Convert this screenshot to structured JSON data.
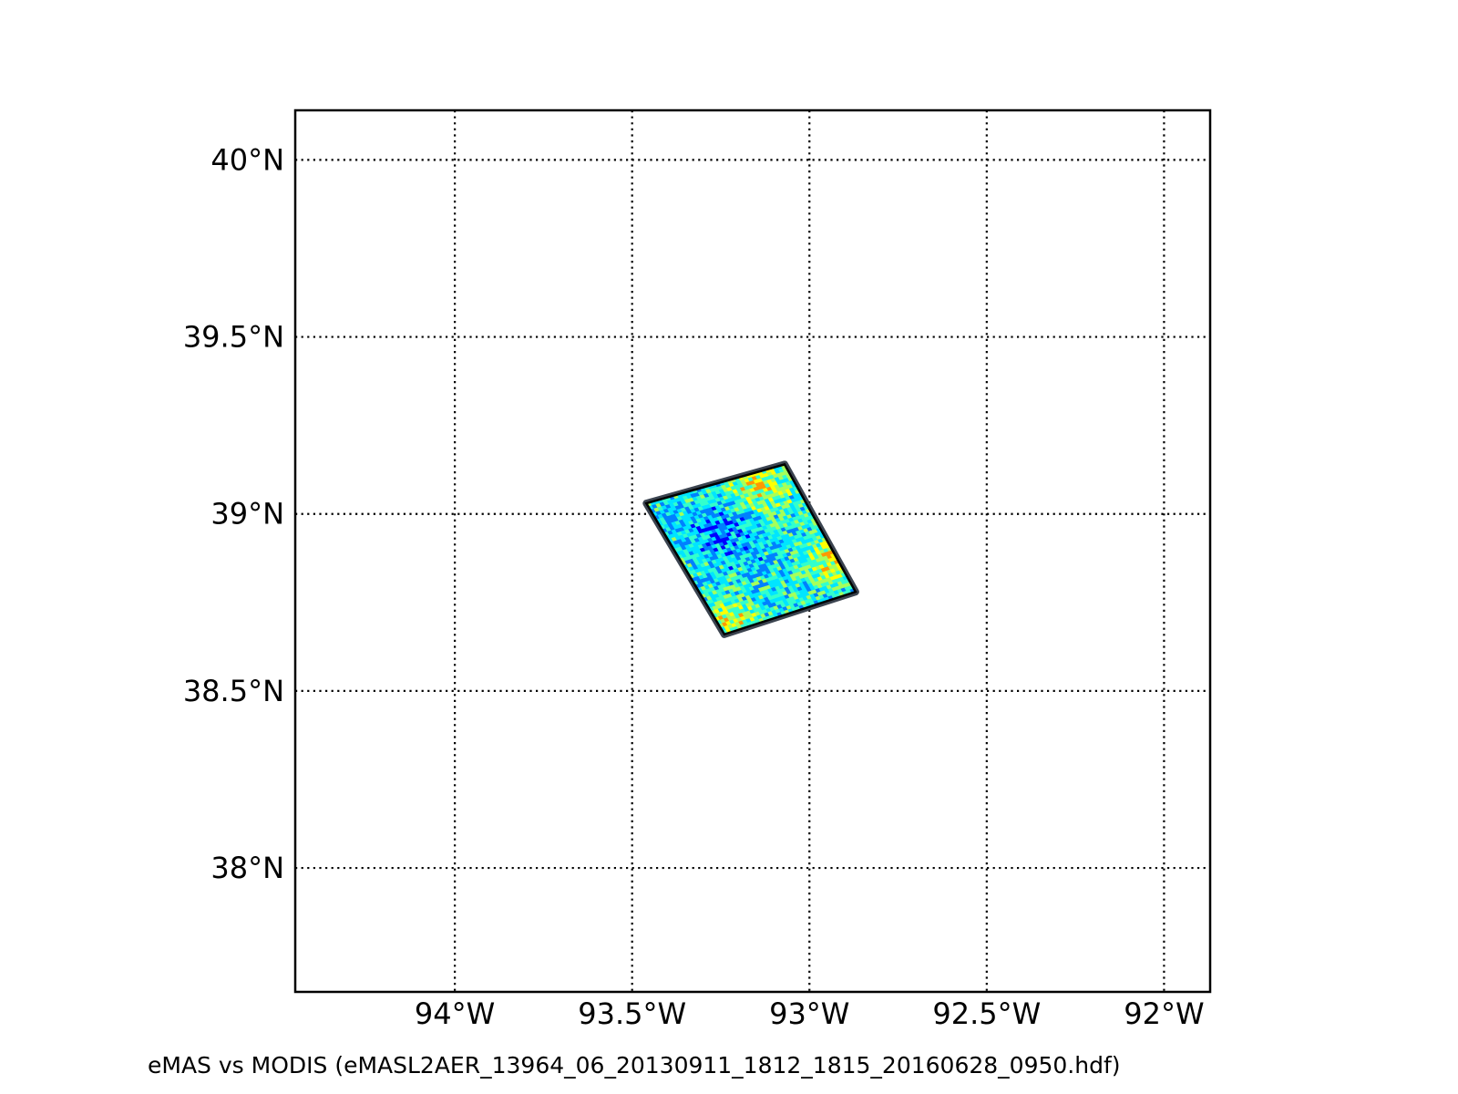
{
  "map": {
    "caption": "eMAS vs MODIS (eMASL2AER_13964_06_20130911_1812_1815_20160628_0950.hdf)",
    "lon_range": [
      -94.45,
      -91.87
    ],
    "lat_range": [
      37.65,
      40.14
    ],
    "lon_ticks": [
      {
        "value": -94.0,
        "label": "94°W"
      },
      {
        "value": -93.5,
        "label": "93.5°W"
      },
      {
        "value": -93.0,
        "label": "93°W"
      },
      {
        "value": -92.5,
        "label": "92.5°W"
      },
      {
        "value": -92.0,
        "label": "92°W"
      }
    ],
    "lat_ticks": [
      {
        "value": 40.0,
        "label": "40°N"
      },
      {
        "value": 39.5,
        "label": "39.5°N"
      },
      {
        "value": 39.0,
        "label": "39°N"
      },
      {
        "value": 38.5,
        "label": "38.5°N"
      },
      {
        "value": 38.0,
        "label": "38°N"
      }
    ],
    "gridlines": "dotted",
    "swath": {
      "corners": [
        {
          "lon": -93.46,
          "lat": 39.03
        },
        {
          "lon": -93.07,
          "lat": 39.14
        },
        {
          "lon": -92.87,
          "lat": 38.78
        },
        {
          "lon": -93.24,
          "lat": 38.66
        }
      ],
      "colormap": [
        "#00008b",
        "#0000ff",
        "#0080ff",
        "#00e5ff",
        "#33ffcc",
        "#a6ff5a",
        "#ffff00",
        "#ff9900",
        "#ff2200",
        "#8b0000"
      ],
      "outline_color": "#3b4450"
    }
  }
}
